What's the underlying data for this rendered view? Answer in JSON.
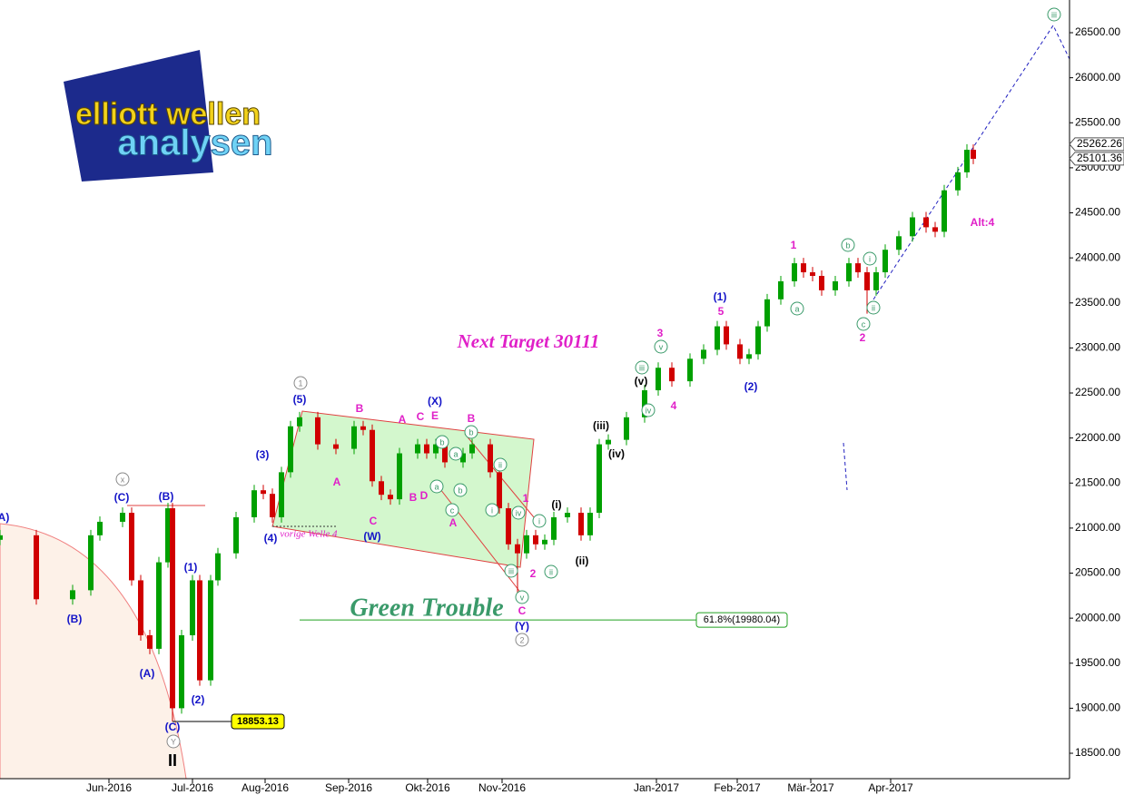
{
  "logo": {
    "line1": "elliott wellen",
    "line2": "analysen"
  },
  "chart_data": {
    "type": "candlestick",
    "xlim": [
      0,
      1178
    ],
    "ylim": [
      18218,
      26863
    ],
    "xticks": [
      {
        "value": 120,
        "label": "Jun-2016"
      },
      {
        "value": 212,
        "label": "Jul-2016"
      },
      {
        "value": 292,
        "label": "Aug-2016"
      },
      {
        "value": 384,
        "label": "Sep-2016"
      },
      {
        "value": 471,
        "label": "Okt-2016"
      },
      {
        "value": 553,
        "label": "Nov-2016"
      },
      {
        "value": 723,
        "label": "Jan-2017"
      },
      {
        "value": 812,
        "label": "Feb-2017"
      },
      {
        "value": 893,
        "label": "Mär-2017"
      },
      {
        "value": 981,
        "label": "Apr-2017"
      }
    ],
    "yticks": [
      {
        "value": 18500,
        "label": "18500.00"
      },
      {
        "value": 19000,
        "label": "19000.00"
      },
      {
        "value": 19500,
        "label": "19500.00"
      },
      {
        "value": 20000,
        "label": "20000.00"
      },
      {
        "value": 20500,
        "label": "20500.00"
      },
      {
        "value": 21000,
        "label": "21000.00"
      },
      {
        "value": 21500,
        "label": "21500.00"
      },
      {
        "value": 22000,
        "label": "22000.00"
      },
      {
        "value": 22500,
        "label": "22500.00"
      },
      {
        "value": 23000,
        "label": "23000.00"
      },
      {
        "value": 23500,
        "label": "23500.00"
      },
      {
        "value": 24000,
        "label": "24000.00"
      },
      {
        "value": 24500,
        "label": "24500.00"
      },
      {
        "value": 25000,
        "label": "25000.00"
      },
      {
        "value": 25500,
        "label": "25500.00"
      },
      {
        "value": 26000,
        "label": "26000.00"
      },
      {
        "value": 26500,
        "label": "26500.00"
      }
    ],
    "up_color": "#00a000",
    "down_color": "#d00000",
    "x": [
      0,
      40,
      80,
      100,
      110,
      135,
      145,
      155,
      165,
      175,
      185,
      190,
      200,
      212,
      220,
      232,
      240,
      260,
      280,
      290,
      300,
      310,
      320,
      330,
      350,
      370,
      390,
      400,
      410,
      420,
      430,
      440,
      460,
      470,
      480,
      490,
      510,
      520,
      540,
      550,
      560,
      570,
      580,
      590,
      600,
      610,
      625,
      640,
      650,
      660,
      670,
      690,
      710,
      725,
      740,
      760,
      775,
      790,
      800,
      815,
      825,
      835,
      845,
      860,
      875,
      885,
      895,
      905,
      920,
      935,
      945,
      955,
      965,
      975,
      990,
      1005,
      1020,
      1030,
      1040,
      1055,
      1065,
      1072
    ],
    "open": [
      20870,
      20920,
      20210,
      20310,
      20920,
      21070,
      21170,
      20420,
      19810,
      19660,
      20620,
      21220,
      19000,
      19810,
      20420,
      19310,
      20420,
      20720,
      21120,
      21420,
      21380,
      21120,
      21620,
      22130,
      22230,
      21930,
      21880,
      22130,
      22090,
      21520,
      21370,
      21320,
      21830,
      21930,
      21830,
      21930,
      21730,
      21830,
      21930,
      21620,
      21220,
      20820,
      20720,
      20920,
      20820,
      20870,
      21120,
      21170,
      20920,
      21170,
      21930,
      21980,
      22230,
      22530,
      22780,
      22630,
      22880,
      22980,
      23240,
      23040,
      22880,
      22930,
      23240,
      23540,
      23740,
      23940,
      23840,
      23800,
      23640,
      23740,
      23940,
      23840,
      23640,
      23840,
      24090,
      24240,
      24450,
      24340,
      24290,
      24750,
      24950,
      25200
    ],
    "high": [
      20980,
      20980,
      20370,
      20980,
      21130,
      21230,
      21230,
      20480,
      19870,
      20680,
      21280,
      21280,
      19870,
      20480,
      20480,
      20480,
      20780,
      21180,
      21480,
      21480,
      21440,
      21680,
      22190,
      22290,
      22290,
      21990,
      22190,
      22190,
      22150,
      21580,
      21430,
      21890,
      21990,
      21990,
      21990,
      21990,
      21890,
      21990,
      21990,
      21680,
      21280,
      20880,
      20980,
      20980,
      20930,
      21180,
      21230,
      21230,
      21230,
      21990,
      22040,
      22290,
      22590,
      22840,
      22840,
      22940,
      23040,
      23300,
      23300,
      23100,
      22990,
      23300,
      23600,
      23800,
      24000,
      24000,
      23900,
      23860,
      23800,
      24000,
      24000,
      23900,
      23900,
      24150,
      24300,
      24510,
      24510,
      24400,
      24810,
      25010,
      25262,
      25260
    ],
    "low": [
      20810,
      20150,
      20150,
      20250,
      20860,
      21010,
      20360,
      19750,
      19600,
      19600,
      20560,
      18853,
      18940,
      19750,
      19250,
      19250,
      20360,
      20660,
      21060,
      21320,
      21060,
      21060,
      21560,
      22070,
      21870,
      21820,
      21820,
      22030,
      21460,
      21310,
      21260,
      21260,
      21770,
      21770,
      21770,
      21670,
      21670,
      21770,
      21560,
      21160,
      20760,
      20200,
      20660,
      20760,
      20760,
      20810,
      21060,
      20860,
      20860,
      21110,
      21870,
      21920,
      22170,
      22470,
      22570,
      22570,
      22820,
      22920,
      22980,
      22820,
      22820,
      22870,
      23180,
      23480,
      23680,
      23780,
      23740,
      23580,
      23580,
      23680,
      23780,
      23380,
      23580,
      23780,
      24030,
      24180,
      24280,
      24230,
      24230,
      24690,
      24890,
      25040
    ],
    "close": [
      20920,
      20210,
      20310,
      20920,
      21070,
      21170,
      20420,
      19810,
      19660,
      20620,
      21220,
      19000,
      19810,
      20420,
      19310,
      20420,
      20720,
      21120,
      21420,
      21380,
      21120,
      21620,
      22130,
      22230,
      21930,
      21880,
      22130,
      22090,
      21520,
      21370,
      21320,
      21830,
      21930,
      21830,
      21930,
      21730,
      21830,
      21930,
      21620,
      21220,
      20820,
      20720,
      20920,
      20820,
      20870,
      21120,
      21170,
      20920,
      21170,
      21930,
      21980,
      22230,
      22530,
      22780,
      22630,
      22880,
      22980,
      23240,
      23040,
      22880,
      22930,
      23240,
      23540,
      23740,
      23940,
      23840,
      23800,
      23640,
      23740,
      23940,
      23840,
      23640,
      23840,
      24090,
      24240,
      24450,
      24340,
      24290,
      24750,
      24950,
      25200,
      25100
    ],
    "price_markers": [
      25262.26,
      25101.36
    ],
    "low_marker": 18853.13,
    "fib_level": {
      "label": "61.8%(19980.04)",
      "value": 19980.04
    },
    "texts": {
      "target": "Next Target 30111",
      "trouble": "Green Trouble",
      "prev_wave": "vorige Welle 4"
    },
    "annotations": [
      {
        "text": "(A)",
        "color": "#1414c8",
        "circled": false
      },
      {
        "text": "(B)",
        "color": "#1414c8",
        "circled": false
      },
      {
        "text": "(C)",
        "color": "#1414c8",
        "circled": false
      },
      {
        "text": "(B)",
        "color": "#1414c8",
        "circled": false
      },
      {
        "text": "(A)",
        "color": "#1414c8",
        "circled": false
      },
      {
        "text": "(C)",
        "color": "#1414c8",
        "circled": false
      },
      {
        "text": "(1)",
        "color": "#1414c8",
        "circled": false
      },
      {
        "text": "(2)",
        "color": "#1414c8",
        "circled": false
      },
      {
        "text": "(3)",
        "color": "#1414c8",
        "circled": false
      },
      {
        "text": "(4)",
        "color": "#1414c8",
        "circled": false
      },
      {
        "text": "(5)",
        "color": "#1414c8",
        "circled": false
      },
      {
        "text": "(W)",
        "color": "#1414c8",
        "circled": false
      },
      {
        "text": "(X)",
        "color": "#1414c8",
        "circled": false
      },
      {
        "text": "(Y)",
        "color": "#1414c8",
        "circled": false
      },
      {
        "text": "(1)",
        "color": "#1414c8",
        "circled": false
      },
      {
        "text": "(2)",
        "color": "#1414c8",
        "circled": false
      },
      {
        "text": "B",
        "color": "#e020c8",
        "circled": false
      },
      {
        "text": "A",
        "color": "#e020c8",
        "circled": false
      },
      {
        "text": "C",
        "color": "#e020c8",
        "circled": false
      },
      {
        "text": "A",
        "color": "#e020c8",
        "circled": false
      },
      {
        "text": "C",
        "color": "#e020c8",
        "circled": false
      },
      {
        "text": "E",
        "color": "#e020c8",
        "circled": false
      },
      {
        "text": "B",
        "color": "#e020c8",
        "circled": false
      },
      {
        "text": "D",
        "color": "#e020c8",
        "circled": false
      },
      {
        "text": "B",
        "color": "#e020c8",
        "circled": false
      },
      {
        "text": "A",
        "color": "#e020c8",
        "circled": false
      },
      {
        "text": "1",
        "color": "#e020c8",
        "circled": false
      },
      {
        "text": "2",
        "color": "#e020c8",
        "circled": false
      },
      {
        "text": "C",
        "color": "#e020c8",
        "circled": false
      },
      {
        "text": "3",
        "color": "#e020c8",
        "circled": false
      },
      {
        "text": "4",
        "color": "#e020c8",
        "circled": false
      },
      {
        "text": "5",
        "color": "#e020c8",
        "circled": false
      },
      {
        "text": "1",
        "color": "#e020c8",
        "circled": false
      },
      {
        "text": "2",
        "color": "#e020c8",
        "circled": false
      },
      {
        "text": "Alt:4",
        "color": "#e020c8",
        "circled": false
      },
      {
        "text": "(iii)",
        "color": "#000000",
        "circled": false
      },
      {
        "text": "(iv)",
        "color": "#000000",
        "circled": false
      },
      {
        "text": "(v)",
        "color": "#000000",
        "circled": false
      },
      {
        "text": "(i)",
        "color": "#000000",
        "circled": false
      },
      {
        "text": "(ii)",
        "color": "#000000",
        "circled": false
      },
      {
        "text": "II",
        "color": "#000000",
        "circled": false
      },
      {
        "text": "iii",
        "color": "#3a9a6a",
        "circled": true
      },
      {
        "text": "iv",
        "color": "#3a9a6a",
        "circled": true
      },
      {
        "text": "v",
        "color": "#3a9a6a",
        "circled": true
      },
      {
        "text": "b",
        "color": "#3a9a6a",
        "circled": true
      },
      {
        "text": "a",
        "color": "#3a9a6a",
        "circled": true
      },
      {
        "text": "c",
        "color": "#3a9a6a",
        "circled": true
      },
      {
        "text": "i",
        "color": "#3a9a6a",
        "circled": true
      },
      {
        "text": "ii",
        "color": "#3a9a6a",
        "circled": true
      },
      {
        "text": "iii",
        "color": "#3a9a6a",
        "circled": true
      },
      {
        "text": "b",
        "color": "#3a9a6a",
        "circled": true
      },
      {
        "text": "a",
        "color": "#3a9a6a",
        "circled": true
      },
      {
        "text": "b",
        "color": "#3a9a6a",
        "circled": true
      },
      {
        "text": "a",
        "color": "#3a9a6a",
        "circled": true
      },
      {
        "text": "c",
        "color": "#3a9a6a",
        "circled": true
      },
      {
        "text": "b",
        "color": "#3a9a6a",
        "circled": true
      },
      {
        "text": "ii",
        "color": "#3a9a6a",
        "circled": true
      },
      {
        "text": "i",
        "color": "#3a9a6a",
        "circled": true
      },
      {
        "text": "iv",
        "color": "#3a9a6a",
        "circled": true
      },
      {
        "text": "i",
        "color": "#3a9a6a",
        "circled": true
      },
      {
        "text": "iii",
        "color": "#3a9a6a",
        "circled": true
      },
      {
        "text": "ii",
        "color": "#3a9a6a",
        "circled": true
      },
      {
        "text": "v",
        "color": "#3a9a6a",
        "circled": true
      },
      {
        "text": "1",
        "color": "#888888",
        "circled": true
      },
      {
        "text": "x",
        "color": "#888888",
        "circled": true
      },
      {
        "text": "Y",
        "color": "#888888",
        "circled": true
      },
      {
        "text": "2",
        "color": "#888888",
        "circled": true
      }
    ]
  }
}
